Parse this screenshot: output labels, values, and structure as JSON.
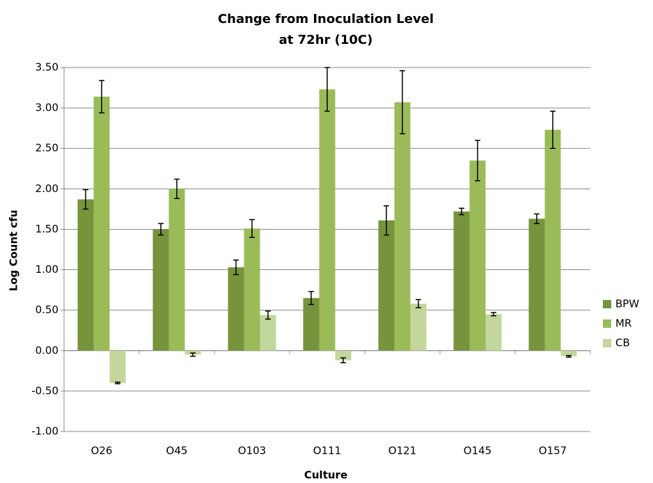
{
  "chart_data": {
    "type": "bar",
    "title": [
      "Change from  Inoculation Level",
      "at 72hr (10C)"
    ],
    "xlabel": "Culture",
    "ylabel": "Log Count cfu",
    "categories": [
      "O26",
      "O45",
      "O103",
      "O111",
      "O121",
      "O145",
      "O157"
    ],
    "series": [
      {
        "name": "BPW",
        "color": "#77933c",
        "values": [
          1.87,
          1.5,
          1.03,
          0.65,
          1.61,
          1.72,
          1.63
        ],
        "errors": [
          0.12,
          0.07,
          0.09,
          0.08,
          0.18,
          0.04,
          0.06
        ]
      },
      {
        "name": "MR",
        "color": "#9bbb59",
        "values": [
          3.14,
          2.0,
          1.51,
          3.23,
          3.07,
          2.35,
          2.73
        ],
        "errors": [
          0.2,
          0.12,
          0.11,
          0.27,
          0.39,
          0.25,
          0.23
        ]
      },
      {
        "name": "CB",
        "color": "#c3d69b",
        "values": [
          -0.4,
          -0.05,
          0.44,
          -0.12,
          0.58,
          0.45,
          -0.07
        ],
        "errors": [
          0.01,
          0.02,
          0.05,
          0.03,
          0.05,
          0.02,
          0.01
        ]
      }
    ],
    "ylim": [
      -1,
      3.5
    ],
    "yticks": [
      {
        "value": -1,
        "label": "-1.00"
      },
      {
        "value": -0.5,
        "label": "-0.50"
      },
      {
        "value": 0,
        "label": "0.00"
      },
      {
        "value": 0.5,
        "label": "0.50"
      },
      {
        "value": 1,
        "label": "1.00"
      },
      {
        "value": 1.5,
        "label": "1.50"
      },
      {
        "value": 2,
        "label": "2.00"
      },
      {
        "value": 2.5,
        "label": "2.50"
      },
      {
        "value": 3,
        "label": "3.00"
      },
      {
        "value": 3.5,
        "label": "3.50"
      }
    ],
    "grid": true,
    "legend": "right"
  }
}
